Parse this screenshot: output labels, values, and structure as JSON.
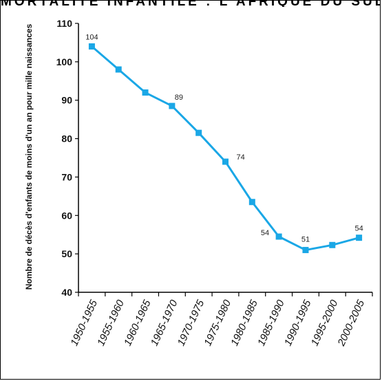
{
  "page": {
    "header_text": "MORTALITÉ INFANTILE : L'AFRIQUE DU SUD"
  },
  "chart_data": {
    "type": "line",
    "title": "",
    "xlabel": "",
    "ylabel": "Nombre de décès d'enfants de moins d'un an pour mille naissances",
    "categories": [
      "1950-1955",
      "1955-1960",
      "1960-1965",
      "1965-1970",
      "1970-1975",
      "1975-1980",
      "1980-1985",
      "1985-1990",
      "1990-1995",
      "1995-2000",
      "2000-2005"
    ],
    "series": [
      {
        "values": [
          104,
          98,
          92,
          88.5,
          81.5,
          74,
          63.5,
          54.5,
          51,
          52.3,
          54.2
        ]
      }
    ],
    "ylim": [
      40,
      110
    ],
    "yticks": [
      40,
      50,
      60,
      70,
      80,
      90,
      100,
      110
    ],
    "data_labels": [
      {
        "index": 0,
        "text": "104"
      },
      {
        "index": 3,
        "text": "89"
      },
      {
        "index": 5,
        "text": "74"
      },
      {
        "index": 7,
        "text": "54"
      },
      {
        "index": 8,
        "text": "51"
      },
      {
        "index": 10,
        "text": "54"
      }
    ],
    "grid": false,
    "colors": {
      "line": "#1aa7e6",
      "axis": "#000000"
    }
  }
}
